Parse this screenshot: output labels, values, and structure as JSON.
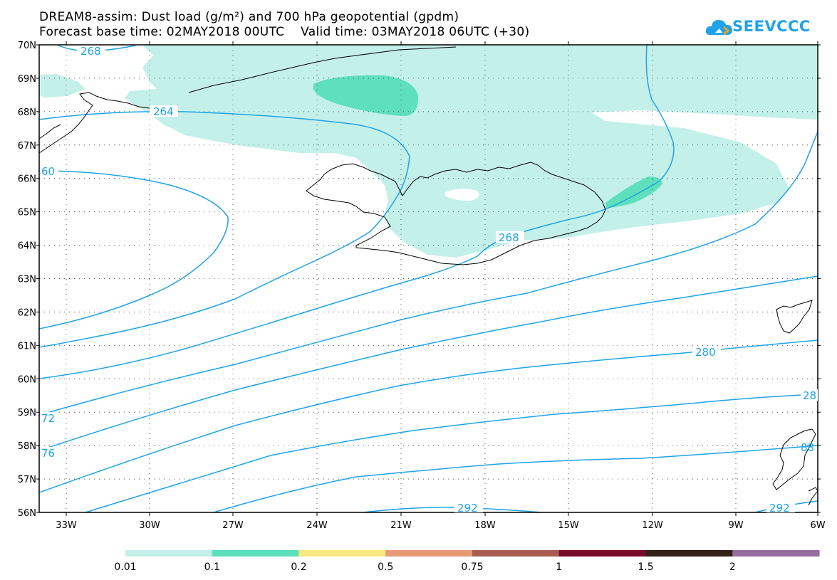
{
  "header": {
    "title_line1": "DREAM8-assim: Dust load (g/m²) and 700 hPa geopotential (gpdm)",
    "title_line2": "Forecast base time: 02MAY2018 00UTC    Valid time: 03MAY2018 06UTC (+30)"
  },
  "logo": {
    "text": "SEEVCCC",
    "icon": "cloud-icon",
    "color": "#1fa3e8"
  },
  "map": {
    "lat_labels": [
      "70N",
      "69N",
      "68N",
      "67N",
      "66N",
      "65N",
      "64N",
      "63N",
      "62N",
      "61N",
      "60N",
      "59N",
      "58N",
      "57N",
      "56N"
    ],
    "lon_labels": [
      "33W",
      "30W",
      "27W",
      "24W",
      "21W",
      "18W",
      "15W",
      "12W",
      "9W",
      "6W"
    ],
    "contour_labels": [
      "268",
      "264",
      "60",
      "268",
      "280",
      "28",
      "72",
      "76",
      "292",
      "292",
      "88"
    ],
    "contour_color": "#1fa3e8",
    "coast_color": "#000000"
  },
  "colorbar": {
    "colors": [
      "#c4f0ea",
      "#5ee0bc",
      "#f8e880",
      "#e89a74",
      "#a85c52",
      "#7a0a2c",
      "#302018",
      "#946e9e"
    ],
    "labels": [
      "0.01",
      "0.1",
      "0.2",
      "0.5",
      "0.75",
      "1",
      "1.5",
      "2"
    ]
  }
}
